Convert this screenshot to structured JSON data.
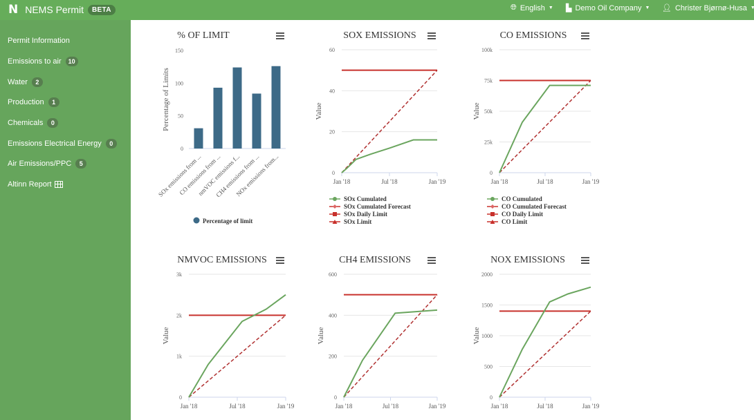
{
  "header": {
    "logo": "N",
    "app_name": "NEMS Permit",
    "beta_label": "BETA",
    "language": "English",
    "company": "Demo Oil Company",
    "user": "Christer Bjørnø-Husa"
  },
  "sidebar": {
    "items": [
      {
        "label": "Permit Information"
      },
      {
        "label": "Emissions to air",
        "badge": "10"
      },
      {
        "label": "Water",
        "badge": "2"
      },
      {
        "label": "Production",
        "badge": "1"
      },
      {
        "label": "Chemicals",
        "badge": "0"
      },
      {
        "label": "Emissions Electrical Energy",
        "badge": "0"
      },
      {
        "label": "Air Emissions/PPC",
        "badge": "5"
      },
      {
        "label": "Altinn Report"
      }
    ]
  },
  "colors": {
    "topbar": "#66ad5a",
    "sidebar": "#66a55c",
    "bar": "#3d6a87",
    "cumulated": "#6aa55e",
    "limit": "#c8302b",
    "forecast": "#b03030"
  },
  "chart_data": [
    {
      "type": "bar",
      "title": "% OF LIMIT",
      "ylabel": "Percentage of Limits",
      "categories": [
        "SOx emissions from ...",
        "CO emissions from ...",
        "nmVOC emissions f...",
        "CH4 emissions from ...",
        "NOx emissions from..."
      ],
      "series": [
        {
          "name": "Percentage of limit",
          "values": [
            31,
            93,
            124,
            84,
            126
          ]
        }
      ],
      "ylim": [
        0,
        150
      ],
      "yticks": [
        "0",
        "50",
        "100",
        "150"
      ]
    },
    {
      "type": "line",
      "title": "SOX EMISSIONS",
      "ylabel": "Value",
      "ylim": [
        0,
        60
      ],
      "yticks": [
        {
          "v": 0,
          "label": "0"
        },
        {
          "v": 20,
          "label": "20"
        },
        {
          "v": 40,
          "label": "40"
        },
        {
          "v": 60,
          "label": "60"
        }
      ],
      "xticks": [
        "Jan '18",
        "Jul '18",
        "Jan '19"
      ],
      "limit": 50,
      "forecast": [
        [
          0,
          0
        ],
        [
          1,
          50
        ]
      ],
      "cumulated": [
        [
          0,
          0
        ],
        [
          0.05,
          2
        ],
        [
          0.15,
          6.5
        ],
        [
          0.3,
          9
        ],
        [
          0.5,
          12
        ],
        [
          0.75,
          16
        ],
        [
          1,
          16
        ]
      ],
      "legend": [
        "SOx Cumulated",
        "SOx Cumulated Forecast",
        "SOx Daily Limit",
        "SOx Limit"
      ]
    },
    {
      "type": "line",
      "title": "CO EMISSIONS",
      "ylabel": "Value",
      "ylim": [
        0,
        100000
      ],
      "yticks": [
        {
          "v": 0,
          "label": "0"
        },
        {
          "v": 25000,
          "label": "25k"
        },
        {
          "v": 50000,
          "label": "50k"
        },
        {
          "v": 75000,
          "label": "75k"
        },
        {
          "v": 100000,
          "label": "100k"
        }
      ],
      "xticks": [
        "Jan '18",
        "Jul '18",
        "Jan '19"
      ],
      "limit": 75000,
      "forecast": [
        [
          0,
          0
        ],
        [
          1,
          75000
        ]
      ],
      "cumulated": [
        [
          0,
          0
        ],
        [
          0.25,
          41000
        ],
        [
          0.55,
          71000
        ],
        [
          1,
          71000
        ]
      ],
      "legend": [
        "CO Cumulated",
        "CO Cumulated Forecast",
        "CO Daily Limit",
        "CO Limit"
      ]
    },
    {
      "type": "line",
      "title": "NMVOC EMISSIONS",
      "ylabel": "Value",
      "ylim": [
        0,
        3000
      ],
      "yticks": [
        {
          "v": 0,
          "label": "0"
        },
        {
          "v": 1000,
          "label": "1k"
        },
        {
          "v": 2000,
          "label": "2k"
        },
        {
          "v": 3000,
          "label": "3k"
        }
      ],
      "xticks": [
        "Jan '18",
        "Jul '18",
        "Jan '19"
      ],
      "limit": 2000,
      "forecast": [
        [
          0,
          0
        ],
        [
          1,
          2000
        ]
      ],
      "cumulated": [
        [
          0,
          0
        ],
        [
          0.2,
          800
        ],
        [
          0.55,
          1850
        ],
        [
          0.8,
          2150
        ],
        [
          1,
          2500
        ]
      ],
      "legend": []
    },
    {
      "type": "line",
      "title": "CH4 EMISSIONS",
      "ylabel": "Value",
      "ylim": [
        0,
        600
      ],
      "yticks": [
        {
          "v": 0,
          "label": "0"
        },
        {
          "v": 200,
          "label": "200"
        },
        {
          "v": 400,
          "label": "400"
        },
        {
          "v": 600,
          "label": "600"
        }
      ],
      "xticks": [
        "Jan '18",
        "Jul '18",
        "Jan '19"
      ],
      "limit": 500,
      "forecast": [
        [
          0,
          0
        ],
        [
          1,
          500
        ]
      ],
      "cumulated": [
        [
          0,
          0
        ],
        [
          0.2,
          180
        ],
        [
          0.55,
          410
        ],
        [
          1,
          425
        ]
      ],
      "legend": []
    },
    {
      "type": "line",
      "title": "NOX EMISSIONS",
      "ylabel": "Value",
      "ylim": [
        0,
        2000
      ],
      "yticks": [
        {
          "v": 0,
          "label": "0"
        },
        {
          "v": 500,
          "label": "500"
        },
        {
          "v": 1000,
          "label": "1000"
        },
        {
          "v": 1500,
          "label": "1500"
        },
        {
          "v": 2000,
          "label": "2000"
        }
      ],
      "xticks": [
        "Jan '18",
        "Jul '18",
        "Jan '19"
      ],
      "limit": 1400,
      "forecast": [
        [
          0,
          0
        ],
        [
          1,
          1400
        ]
      ],
      "cumulated": [
        [
          0,
          0
        ],
        [
          0.25,
          780
        ],
        [
          0.55,
          1550
        ],
        [
          0.75,
          1680
        ],
        [
          1,
          1790
        ]
      ],
      "legend": []
    }
  ]
}
